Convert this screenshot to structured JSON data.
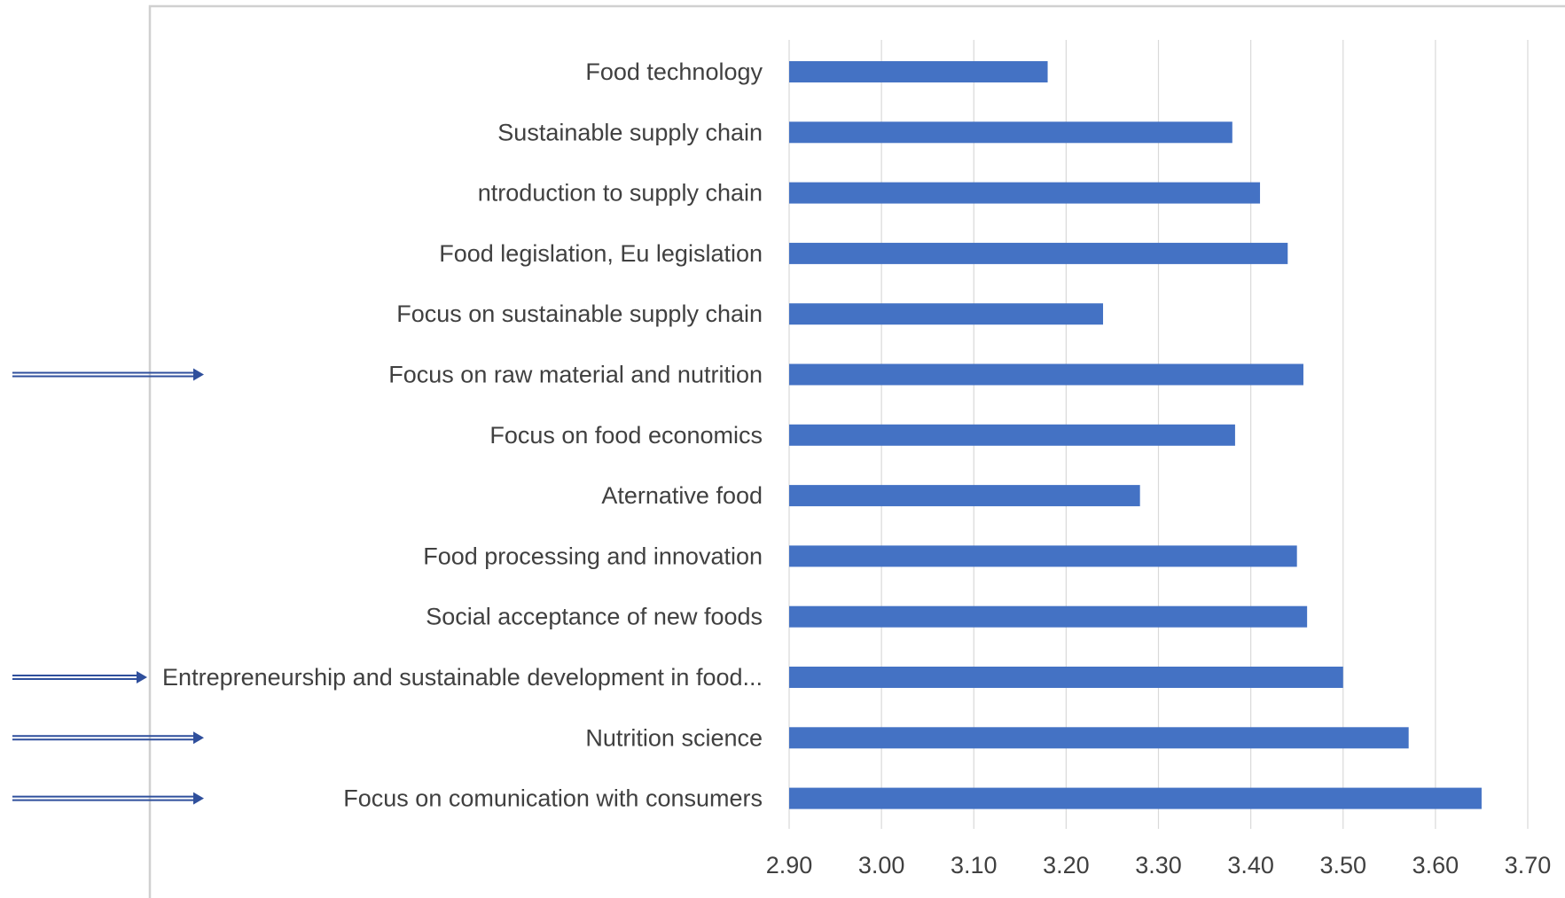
{
  "chart_data": {
    "type": "bar",
    "orientation": "horizontal",
    "title": "",
    "xlabel": "",
    "ylabel": "",
    "categories": [
      "Food technology",
      "Sustainable supply chain",
      "ntroduction to supply chain",
      "Food legislation,  Eu legislation",
      "Focus on sustainable supply chain",
      "Focus on raw material and nutrition",
      "Focus on food economics",
      "Aternative food",
      "Food processing and innovation",
      "Social acceptance of new foods",
      "Entrepreneurship and sustainable  development in food...",
      "Nutrition science",
      "Focus on comunication with consumers"
    ],
    "values": [
      3.18,
      3.38,
      3.41,
      3.44,
      3.24,
      3.457,
      3.383,
      3.28,
      3.45,
      3.461,
      3.5,
      3.571,
      3.65
    ],
    "xlim": [
      2.9,
      3.7
    ],
    "ticks": [
      "2.90",
      "3.00",
      "3.10",
      "3.20",
      "3.30",
      "3.40",
      "3.50",
      "3.60",
      "3.70"
    ],
    "grid": "vertical",
    "legend": "none",
    "bar_color": "#4472c4",
    "highlighted_categories": [
      "Focus on raw material and nutrition",
      "Entrepreneurship and sustainable  development in food...",
      "Nutrition science",
      "Focus on comunication with consumers"
    ],
    "arrow_color": "#2f4f9c"
  }
}
